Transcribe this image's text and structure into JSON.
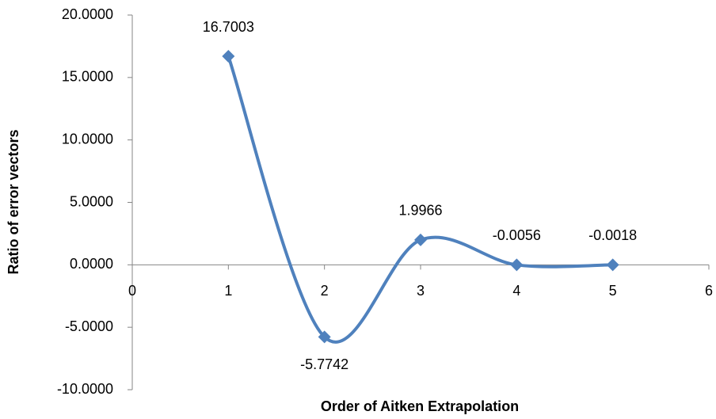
{
  "chart_data": {
    "type": "scatter-smooth",
    "x_label": "Order of Aitken Extrapolation",
    "y_label": "Ratio of error vectors",
    "x": [
      1,
      2,
      3,
      4,
      5
    ],
    "series": [
      {
        "color": "#4f81bd",
        "values": [
          16.7003,
          -5.7742,
          1.9966,
          -0.0056,
          -0.0018
        ]
      }
    ],
    "xlim": [
      0,
      6
    ],
    "xticks": [
      0,
      1,
      2,
      3,
      4,
      5,
      6
    ],
    "ylim": [
      -10,
      20
    ],
    "yticks": [
      {
        "value": -10,
        "label": "-10.0000"
      },
      {
        "value": -5,
        "label": "-5.0000"
      },
      {
        "value": 0,
        "label": "0.0000"
      },
      {
        "value": 5,
        "label": "5.0000"
      },
      {
        "value": 10,
        "label": "10.0000"
      },
      {
        "value": 15,
        "label": "15.0000"
      },
      {
        "value": 20,
        "label": "20.0000"
      }
    ],
    "grid": false
  }
}
